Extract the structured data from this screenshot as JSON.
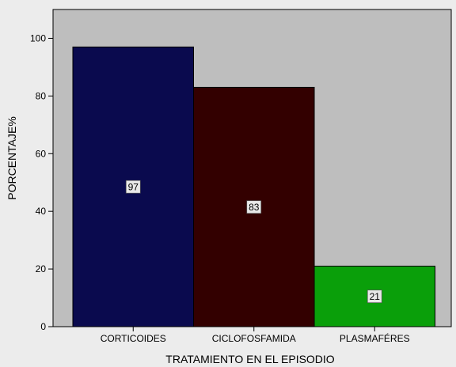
{
  "chart_data": {
    "type": "bar",
    "categories": [
      "CORTICOIDES",
      "CICLOFOSFAMIDA",
      "PLASMAFÉRES"
    ],
    "values": [
      97,
      83,
      21
    ],
    "data_labels": [
      "97",
      "83",
      "21"
    ],
    "bar_colors": [
      "#0a0a4e",
      "#330000",
      "#0a9f0a"
    ],
    "xlabel": "TRATAMIENTO EN EL EPISODIO",
    "ylabel": "PORCENTAJE%",
    "ylim": [
      0,
      110
    ],
    "yticks": [
      "0",
      "20",
      "40",
      "60",
      "80",
      "100"
    ],
    "grid": false,
    "plot_background": "#bebebe",
    "page_background": "#ececec"
  }
}
